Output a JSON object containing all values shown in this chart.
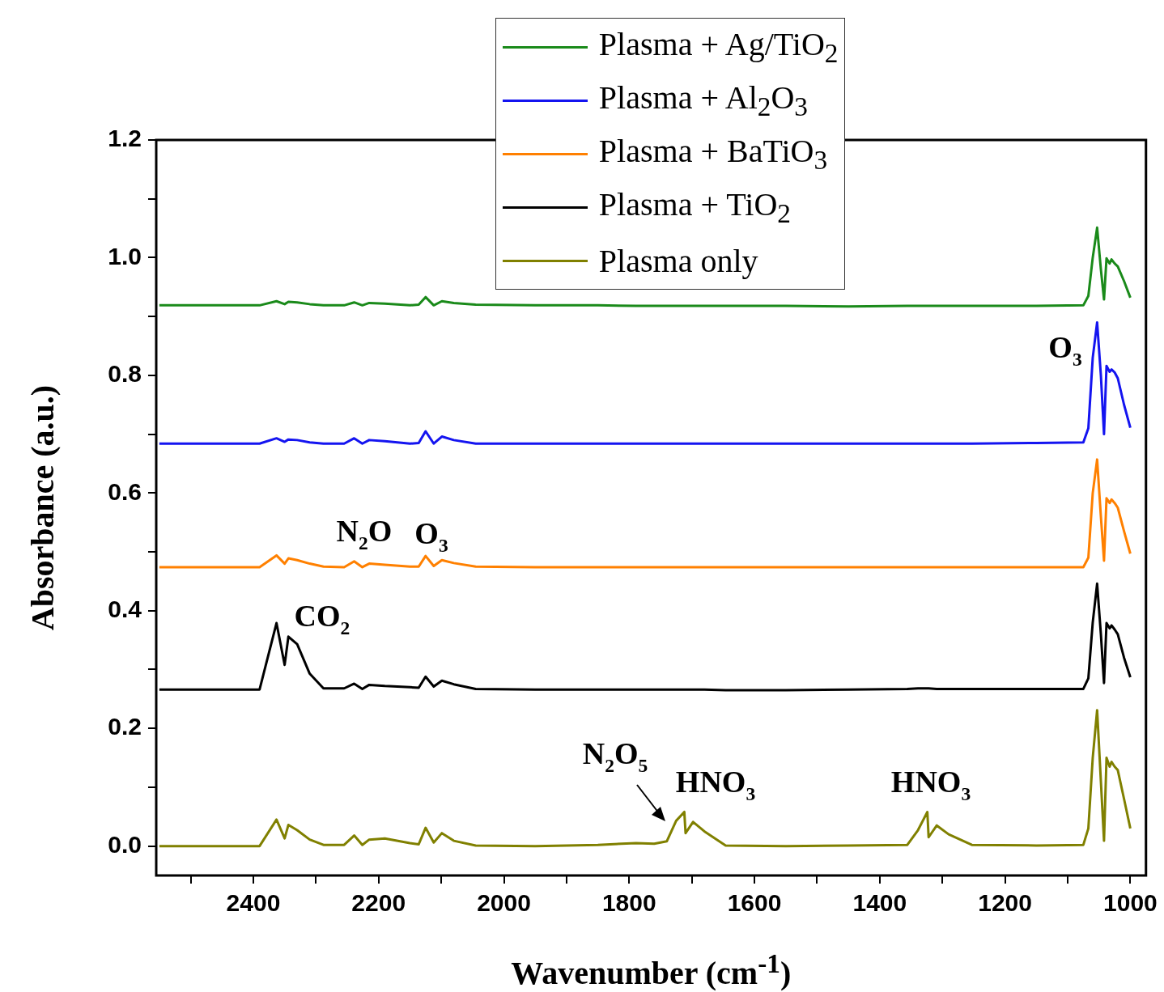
{
  "chart_data": {
    "type": "line",
    "xlabel": "Wavenumber (cm$^{-1}$)",
    "ylabel": "Absorbance (a.u.)",
    "x": [
      2550,
      2390,
      2363,
      2350,
      2344,
      2330,
      2310,
      2288,
      2255,
      2239,
      2226,
      2215,
      2190,
      2150,
      2136,
      2125,
      2112,
      2099,
      2080,
      2045,
      1950,
      1850,
      1789,
      1760,
      1740,
      1725,
      1712,
      1710,
      1698,
      1680,
      1646,
      1550,
      1450,
      1356,
      1339,
      1324,
      1322,
      1309,
      1290,
      1253,
      1150,
      1075,
      1067,
      1060,
      1053,
      1047,
      1042,
      1038,
      1033,
      1030,
      1025,
      1020,
      1010,
      1000
    ],
    "series": [
      {
        "name": "Plasma + Ag/TiO$_{2}$",
        "color": "#1a8a1a",
        "values": [
          0.919,
          0.919,
          0.926,
          0.921,
          0.925,
          0.924,
          0.921,
          0.919,
          0.919,
          0.924,
          0.919,
          0.923,
          0.922,
          0.919,
          0.92,
          0.933,
          0.919,
          0.926,
          0.923,
          0.92,
          0.919,
          0.919,
          0.918,
          0.918,
          0.918,
          0.918,
          0.918,
          0.918,
          0.918,
          0.918,
          0.918,
          0.918,
          0.917,
          0.918,
          0.918,
          0.918,
          0.918,
          0.918,
          0.918,
          0.918,
          0.918,
          0.919,
          0.935,
          1.0,
          1.051,
          0.98,
          0.929,
          0.999,
          0.99,
          0.997,
          0.99,
          0.985,
          0.96,
          0.932
        ]
      },
      {
        "name": "Plasma + Al$_{2}$O$_{3}$",
        "color": "#1414f0",
        "values": [
          0.684,
          0.684,
          0.693,
          0.687,
          0.691,
          0.69,
          0.686,
          0.684,
          0.684,
          0.693,
          0.684,
          0.69,
          0.688,
          0.684,
          0.685,
          0.705,
          0.684,
          0.696,
          0.69,
          0.684,
          0.684,
          0.684,
          0.684,
          0.684,
          0.684,
          0.684,
          0.684,
          0.684,
          0.684,
          0.684,
          0.684,
          0.684,
          0.684,
          0.684,
          0.684,
          0.684,
          0.684,
          0.684,
          0.684,
          0.684,
          0.685,
          0.686,
          0.71,
          0.83,
          0.89,
          0.8,
          0.7,
          0.816,
          0.806,
          0.81,
          0.805,
          0.795,
          0.75,
          0.711
        ]
      },
      {
        "name": "Plasma + BaTiO$_{3}$",
        "color": "#ff8000",
        "values": [
          0.474,
          0.474,
          0.494,
          0.48,
          0.489,
          0.486,
          0.48,
          0.475,
          0.474,
          0.484,
          0.474,
          0.48,
          0.478,
          0.475,
          0.475,
          0.493,
          0.476,
          0.486,
          0.481,
          0.475,
          0.474,
          0.474,
          0.474,
          0.474,
          0.474,
          0.474,
          0.474,
          0.474,
          0.474,
          0.474,
          0.474,
          0.474,
          0.474,
          0.474,
          0.474,
          0.474,
          0.474,
          0.474,
          0.474,
          0.474,
          0.474,
          0.474,
          0.49,
          0.6,
          0.657,
          0.56,
          0.485,
          0.591,
          0.583,
          0.589,
          0.583,
          0.575,
          0.535,
          0.497
        ]
      },
      {
        "name": "Plasma + TiO$_{2}$",
        "color": "#000000",
        "values": [
          0.266,
          0.266,
          0.379,
          0.308,
          0.356,
          0.343,
          0.293,
          0.268,
          0.268,
          0.276,
          0.267,
          0.274,
          0.272,
          0.27,
          0.269,
          0.288,
          0.271,
          0.281,
          0.275,
          0.267,
          0.266,
          0.266,
          0.266,
          0.266,
          0.266,
          0.266,
          0.266,
          0.266,
          0.266,
          0.266,
          0.265,
          0.265,
          0.266,
          0.267,
          0.268,
          0.268,
          0.268,
          0.267,
          0.267,
          0.267,
          0.267,
          0.267,
          0.285,
          0.38,
          0.446,
          0.36,
          0.277,
          0.379,
          0.37,
          0.375,
          0.368,
          0.36,
          0.32,
          0.287
        ]
      },
      {
        "name": "Plasma only",
        "color": "#808000",
        "values": [
          0,
          0,
          0.045,
          0.013,
          0.036,
          0.027,
          0.011,
          0.002,
          0.002,
          0.018,
          0.002,
          0.011,
          0.013,
          0.005,
          0.003,
          0.031,
          0.006,
          0.022,
          0.009,
          0.001,
          0,
          0.002,
          0.005,
          0.004,
          0.008,
          0.043,
          0.058,
          0.022,
          0.041,
          0.025,
          0.001,
          0,
          0.001,
          0.002,
          0.027,
          0.058,
          0.015,
          0.035,
          0.02,
          0.002,
          0.001,
          0.002,
          0.03,
          0.15,
          0.231,
          0.11,
          0.009,
          0.15,
          0.135,
          0.143,
          0.135,
          0.129,
          0.08,
          0.03
        ]
      }
    ],
    "annotations": [
      "CO$_{2}$",
      "N$_{2}$O",
      "O$_{3}$",
      "O$_{3}$",
      "N$_{2}$O$_{5}$",
      "HNO$_{3}$",
      "HNO$_{3}$"
    ],
    "xlim": [
      2555,
      975
    ],
    "xticks": [
      {
        "value": 2500,
        "label": null
      },
      2400,
      {
        "value": 2300,
        "label": null
      },
      2200,
      {
        "value": 2100,
        "label": null
      },
      2000,
      {
        "value": 1900,
        "label": null
      },
      1800,
      {
        "value": 1700,
        "label": null
      },
      1600,
      {
        "value": 1500,
        "label": null
      },
      1400,
      {
        "value": 1300,
        "label": null
      },
      1200,
      {
        "value": 1100,
        "label": null
      },
      1000
    ],
    "ylim": [
      -0.05,
      1.2
    ],
    "yticks": [
      {
        "value": 0,
        "label": "0.0"
      },
      {
        "value": 0.1,
        "label": null
      },
      0.2,
      {
        "value": 0.3,
        "label": null
      },
      0.4,
      {
        "value": 0.5,
        "label": null
      },
      0.6,
      {
        "value": 0.7,
        "label": null
      },
      0.8,
      {
        "value": 0.9,
        "label": null
      },
      {
        "value": 1,
        "label": "1.0"
      },
      {
        "value": 1.1,
        "label": null
      },
      1.2
    ],
    "grid": false,
    "legend": "top",
    "marker": "none",
    "line_style": "solid"
  }
}
